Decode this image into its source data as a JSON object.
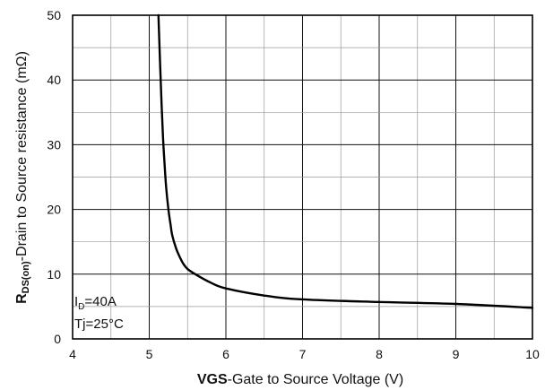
{
  "chart_data": {
    "type": "line",
    "title": "",
    "xlabel": {
      "bold": "VGS",
      "rest": "-Gate to Source Voltage (V)"
    },
    "ylabel": {
      "main": "R",
      "sub": "DS(on)",
      "rest": "-Drain to Source resistance (mΩ)"
    },
    "xlim": [
      4,
      10
    ],
    "ylim": [
      0,
      50
    ],
    "x_ticks": [
      4,
      5,
      6,
      7,
      8,
      9,
      10
    ],
    "y_ticks": [
      0,
      10,
      20,
      30,
      40,
      50
    ],
    "minor_grid": {
      "x_step": 0.5,
      "y_step": 5
    },
    "grid": true,
    "annotations": [
      {
        "main": "I",
        "sub": "D",
        "rest": "=40A"
      },
      {
        "main": "Tj=25°C",
        "sub": "",
        "rest": ""
      }
    ],
    "series": [
      {
        "color": "#000000",
        "x": [
          5.12,
          5.14,
          5.16,
          5.18,
          5.2,
          5.22,
          5.25,
          5.28,
          5.3,
          5.35,
          5.4,
          5.45,
          5.5,
          5.6,
          5.8,
          6.0,
          6.5,
          7.0,
          8.0,
          9.0,
          10.0
        ],
        "y": [
          50,
          43,
          36.5,
          31,
          27,
          23.5,
          20,
          17.5,
          16,
          14,
          12.6,
          11.5,
          10.8,
          10,
          8.7,
          7.8,
          6.7,
          6.1,
          5.7,
          5.4,
          4.8
        ]
      }
    ]
  }
}
